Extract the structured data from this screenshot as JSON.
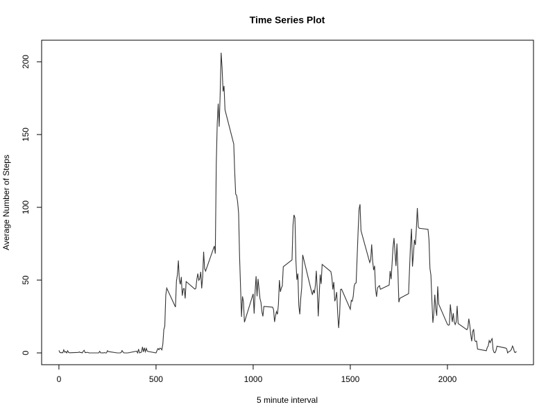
{
  "chart_data": {
    "type": "line",
    "title": "Time Series Plot",
    "x_label": "5 minute interval",
    "y_label": "Average Number of Steps",
    "color": "#333333",
    "xlim": [
      -89,
      2443
    ],
    "ylim": [
      -8.1,
      214.8
    ],
    "xticks": [
      0,
      500,
      1000,
      1500,
      2000
    ],
    "yticks": [
      0,
      50,
      100,
      150,
      200
    ],
    "x": [
      0,
      5,
      10,
      15,
      20,
      25,
      30,
      35,
      40,
      45,
      50,
      55,
      100,
      105,
      110,
      115,
      120,
      125,
      130,
      135,
      140,
      145,
      150,
      155,
      200,
      205,
      210,
      215,
      220,
      225,
      230,
      235,
      240,
      245,
      250,
      255,
      300,
      305,
      310,
      315,
      320,
      325,
      330,
      335,
      340,
      345,
      350,
      355,
      400,
      405,
      410,
      415,
      420,
      425,
      430,
      435,
      440,
      445,
      450,
      455,
      500,
      505,
      510,
      515,
      520,
      525,
      530,
      535,
      540,
      545,
      550,
      555,
      600,
      605,
      610,
      615,
      620,
      625,
      630,
      635,
      640,
      645,
      650,
      655,
      700,
      705,
      710,
      715,
      720,
      725,
      730,
      735,
      740,
      745,
      750,
      755,
      800,
      805,
      810,
      815,
      820,
      825,
      830,
      835,
      840,
      845,
      850,
      855,
      900,
      905,
      910,
      915,
      920,
      925,
      930,
      935,
      940,
      945,
      950,
      955,
      1000,
      1005,
      1010,
      1015,
      1020,
      1025,
      1030,
      1035,
      1040,
      1045,
      1050,
      1055,
      1100,
      1105,
      1110,
      1115,
      1120,
      1125,
      1130,
      1135,
      1140,
      1145,
      1150,
      1155,
      1200,
      1205,
      1210,
      1215,
      1220,
      1225,
      1230,
      1235,
      1240,
      1245,
      1250,
      1255,
      1300,
      1305,
      1310,
      1315,
      1320,
      1325,
      1330,
      1335,
      1340,
      1345,
      1350,
      1355,
      1400,
      1405,
      1410,
      1415,
      1420,
      1425,
      1430,
      1435,
      1440,
      1445,
      1450,
      1455,
      1500,
      1505,
      1510,
      1515,
      1520,
      1525,
      1530,
      1535,
      1540,
      1545,
      1550,
      1555,
      1600,
      1605,
      1610,
      1615,
      1620,
      1625,
      1630,
      1635,
      1640,
      1645,
      1650,
      1655,
      1700,
      1705,
      1710,
      1715,
      1720,
      1725,
      1730,
      1735,
      1740,
      1745,
      1750,
      1755,
      1800,
      1805,
      1810,
      1815,
      1820,
      1825,
      1830,
      1835,
      1840,
      1845,
      1850,
      1855,
      1900,
      1905,
      1910,
      1915,
      1920,
      1925,
      1930,
      1935,
      1940,
      1945,
      1950,
      1955,
      2000,
      2005,
      2010,
      2015,
      2020,
      2025,
      2030,
      2035,
      2040,
      2045,
      2050,
      2055,
      2100,
      2105,
      2110,
      2115,
      2120,
      2125,
      2130,
      2135,
      2140,
      2145,
      2150,
      2155,
      2200,
      2205,
      2210,
      2215,
      2220,
      2225,
      2230,
      2235,
      2240,
      2245,
      2250,
      2255,
      2300,
      2305,
      2310,
      2315,
      2320,
      2325,
      2330,
      2335,
      2340,
      2345,
      2350,
      2355
    ],
    "values": [
      1.7,
      0.3,
      0.1,
      0.2,
      0.1,
      2.1,
      0.5,
      0.9,
      0,
      1.5,
      0.3,
      0.1,
      0.3,
      0.7,
      0.2,
      0.3,
      0,
      1.1,
      1.8,
      0.2,
      0.2,
      0.4,
      0.3,
      0,
      0,
      0,
      1.1,
      0,
      0,
      0.1,
      0,
      0.2,
      0,
      0,
      1.5,
      0.9,
      0,
      0,
      0,
      0,
      0.2,
      1.6,
      0.6,
      0,
      0,
      0,
      0,
      0,
      1.2,
      0,
      2.6,
      0,
      0.3,
      0.5,
      4.1,
      0.7,
      3.5,
      0.8,
      3.1,
      1.1,
      0,
      1.6,
      3.0,
      2.2,
      3.3,
      3.0,
      2.1,
      6.1,
      16.0,
      18.3,
      39.5,
      44.5,
      31.5,
      49.3,
      53.8,
      63.5,
      50.0,
      47.1,
      52.2,
      39.3,
      44.0,
      44.2,
      37.4,
      49.0,
      43.8,
      44.4,
      50.5,
      54.5,
      49.9,
      50.9,
      55.7,
      44.3,
      52.3,
      69.5,
      58.0,
      56.2,
      73.4,
      68.2,
      129.4,
      157.5,
      171.2,
      155.4,
      177.3,
      206.2,
      195.9,
      179.6,
      183.4,
      167.0,
      143.5,
      124.0,
      109.1,
      108.1,
      103.7,
      96.0,
      66.2,
      45.2,
      24.8,
      38.8,
      35.0,
      21.1,
      40.6,
      27.0,
      42.4,
      52.7,
      38.9,
      50.8,
      44.3,
      37.4,
      34.7,
      28.3,
      25.1,
      31.9,
      31.4,
      29.7,
      21.3,
      25.5,
      28.4,
      26.5,
      33.4,
      50.0,
      42.0,
      44.6,
      46.0,
      59.2,
      63.9,
      87.7,
      94.8,
      92.8,
      63.4,
      50.2,
      54.5,
      32.4,
      26.5,
      37.7,
      45.1,
      67.3,
      42.3,
      39.9,
      43.3,
      41.0,
      46.2,
      56.4,
      42.8,
      25.1,
      40.0,
      53.8,
      47.4,
      60.8,
      55.8,
      52.0,
      43.6,
      48.7,
      35.5,
      37.5,
      41.8,
      27.5,
      17.1,
      26.1,
      43.6,
      43.8,
      30.0,
      36.1,
      35.5,
      38.8,
      46.0,
      47.8,
      48.1,
      65.3,
      82.9,
      98.7,
      102.1,
      84.0,
      62.1,
      64.1,
      74.5,
      63.2,
      56.9,
      59.8,
      43.9,
      38.6,
      44.7,
      45.5,
      46.2,
      43.7,
      46.6,
      56.3,
      50.7,
      61.2,
      72.7,
      78.9,
      68.9,
      59.7,
      75.1,
      56.5,
      34.8,
      37.5,
      40.7,
      58.0,
      74.7,
      85.3,
      59.3,
      67.8,
      77.7,
      74.2,
      85.3,
      99.5,
      86.6,
      85.6,
      84.9,
      77.8,
      58.0,
      53.4,
      36.3,
      20.7,
      27.4,
      40.0,
      30.2,
      25.5,
      45.7,
      33.5,
      19.6,
      19.0,
      19.3,
      33.3,
      26.8,
      21.2,
      27.3,
      21.3,
      19.5,
      21.3,
      32.3,
      20.2,
      15.9,
      17.2,
      23.5,
      19.2,
      12.5,
      8.0,
      14.7,
      16.3,
      8.7,
      7.8,
      8.1,
      2.6,
      1.5,
      3.7,
      4.8,
      8.5,
      7.1,
      8.7,
      9.8,
      2.2,
      0.3,
      0.1,
      1.6,
      4.6,
      3.3,
      2.8,
      0,
      0.8,
      1.0,
      1.6,
      2.6,
      4.7,
      3.3,
      0.6,
      0.2,
      1.1
    ]
  }
}
